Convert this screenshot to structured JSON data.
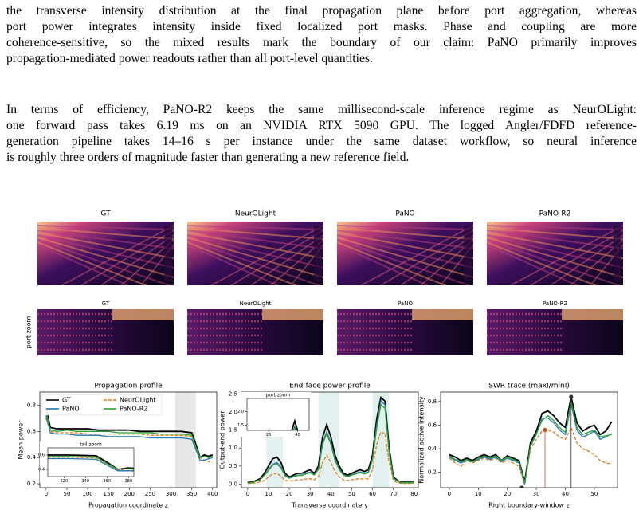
{
  "paragraphs": [
    {
      "lines": [
        "the transverse intensity distribution at the final propagation plane before port aggregation, whereas",
        "port power integrates intensity inside fixed localized port masks. Phase and coupling are more",
        "coherence-sensitive, so the mixed results mark the boundary of our claim: PaNO primarily improves",
        "propagation-mediated power readouts rather than all port-level quantities."
      ]
    },
    {
      "lines": [
        "In terms of efficiency, PaNO-R2 keeps the same millisecond-scale inference regime as NeurOLight:",
        "one forward pass takes 6.19 ms on an NVIDIA RTX 5090 GPU. The logged Angler/FDFD reference-",
        "generation pipeline takes 14–16 s per instance under the same dataset workflow, so neural inference",
        "is roughly three orders of magnitude faster than generating a new reference field."
      ]
    }
  ],
  "figure": {
    "rows": [
      {
        "panels": [
          "GT",
          "NeurOLight",
          "PaNO",
          "PaNO-R2"
        ]
      },
      {
        "label": "port zoom",
        "panels": [
          "GT",
          "NeurOLight",
          "PaNO",
          "PaNO-R2"
        ]
      }
    ],
    "plots": [
      {
        "type": "line",
        "title": "Propagation profile",
        "xlabel": "Propagation coordinate z",
        "ylabel": "Mean power",
        "xlim": [
          -15,
          410
        ],
        "ylim": [
          0.17,
          0.9
        ],
        "xticks": [
          0,
          50,
          100,
          150,
          200,
          250,
          300,
          350,
          400
        ],
        "yticks": [
          0.2,
          0.4,
          0.6,
          0.8
        ],
        "spans": [
          [
            310,
            360
          ]
        ],
        "legend": "upper left",
        "x": [
          0,
          10,
          25,
          50,
          75,
          100,
          125,
          150,
          175,
          200,
          225,
          250,
          275,
          300,
          325,
          350,
          360,
          370,
          380,
          390,
          400
        ],
        "series": [
          {
            "name": "GT",
            "color": "#000000",
            "style": "solid",
            "values": [
              0.78,
              0.63,
              0.62,
              0.62,
              0.62,
              0.62,
              0.61,
              0.61,
              0.61,
              0.61,
              0.6,
              0.6,
              0.6,
              0.6,
              0.6,
              0.59,
              0.5,
              0.4,
              0.42,
              0.41,
              0.42
            ]
          },
          {
            "name": "NeurOLight",
            "color": "#e07b1a",
            "style": "dashed",
            "values": [
              0.7,
              0.6,
              0.59,
              0.59,
              0.59,
              0.58,
              0.58,
              0.58,
              0.58,
              0.58,
              0.58,
              0.57,
              0.57,
              0.57,
              0.57,
              0.56,
              0.48,
              0.4,
              0.38,
              0.37,
              0.36
            ]
          },
          {
            "name": "PaNO",
            "color": "#1f77b4",
            "style": "solid",
            "values": [
              0.72,
              0.59,
              0.58,
              0.58,
              0.57,
              0.57,
              0.57,
              0.56,
              0.56,
              0.56,
              0.56,
              0.55,
              0.55,
              0.55,
              0.55,
              0.54,
              0.46,
              0.38,
              0.38,
              0.39,
              0.4
            ]
          },
          {
            "name": "PaNO-R2",
            "color": "#2ca02c",
            "style": "solid",
            "values": [
              0.75,
              0.61,
              0.6,
              0.61,
              0.6,
              0.6,
              0.6,
              0.6,
              0.59,
              0.59,
              0.59,
              0.59,
              0.58,
              0.58,
              0.58,
              0.57,
              0.48,
              0.4,
              0.41,
              0.4,
              0.41
            ]
          }
        ],
        "inset": {
          "title": "tail zoom",
          "xlim": [
            305,
            385
          ],
          "ylim": [
            0.3,
            0.7
          ],
          "xticks": [
            320,
            340,
            360,
            380
          ],
          "yticks": [
            0.4,
            0.6
          ]
        }
      },
      {
        "type": "line",
        "title": "End-face power profile",
        "xlabel": "Transverse coordinate y",
        "ylabel": "Output-end power",
        "xlim": [
          -3,
          82
        ],
        "ylim": [
          -0.1,
          2.55
        ],
        "xticks": [
          0,
          10,
          20,
          30,
          40,
          50,
          60,
          70,
          80
        ],
        "yticks": [
          {
            "value": 0,
            "label": "0.0"
          },
          0.5,
          {
            "value": 1,
            "label": "1.0"
          },
          1.5,
          {
            "value": 2,
            "label": "2.0"
          },
          2.5
        ],
        "spans": [
          [
            9,
            17
          ],
          [
            34,
            44
          ],
          [
            60,
            68
          ]
        ],
        "x": [
          0,
          2,
          4,
          6,
          8,
          10,
          12,
          14,
          16,
          18,
          20,
          22,
          24,
          26,
          28,
          30,
          32,
          34,
          36,
          38,
          40,
          42,
          44,
          46,
          48,
          50,
          52,
          54,
          56,
          58,
          60,
          62,
          64,
          66,
          68,
          70,
          72,
          74,
          76,
          78,
          80
        ],
        "series": [
          {
            "name": "GT",
            "color": "#000000",
            "style": "solid",
            "values": [
              0.05,
              0.05,
              0.1,
              0.15,
              0.3,
              0.5,
              0.7,
              0.75,
              0.6,
              0.3,
              0.2,
              0.25,
              0.3,
              0.3,
              0.35,
              0.4,
              0.3,
              0.5,
              1.3,
              1.65,
              1.3,
              0.8,
              0.5,
              0.3,
              0.25,
              0.3,
              0.35,
              0.4,
              0.35,
              0.4,
              0.8,
              1.8,
              2.4,
              2.3,
              1.0,
              0.2,
              0.1,
              0.05,
              0.05,
              0.05,
              0.05
            ]
          },
          {
            "name": "NeurOLight",
            "color": "#e07b1a",
            "style": "dashed",
            "values": [
              0.02,
              0.02,
              0.04,
              0.06,
              0.1,
              0.2,
              0.28,
              0.3,
              0.22,
              0.1,
              0.08,
              0.1,
              0.12,
              0.12,
              0.14,
              0.15,
              0.12,
              0.2,
              0.6,
              0.8,
              0.6,
              0.35,
              0.2,
              0.12,
              0.1,
              0.12,
              0.14,
              0.15,
              0.14,
              0.15,
              0.4,
              1.1,
              1.45,
              1.4,
              0.6,
              0.1,
              0.04,
              0.02,
              0.02,
              0.02,
              0.02
            ]
          },
          {
            "name": "PaNO",
            "color": "#1f77b4",
            "style": "solid",
            "values": [
              0.04,
              0.04,
              0.08,
              0.12,
              0.25,
              0.4,
              0.55,
              0.6,
              0.48,
              0.25,
              0.17,
              0.21,
              0.25,
              0.25,
              0.3,
              0.34,
              0.26,
              0.42,
              1.15,
              1.45,
              1.15,
              0.7,
              0.42,
              0.26,
              0.22,
              0.26,
              0.3,
              0.34,
              0.3,
              0.34,
              0.7,
              1.65,
              2.3,
              2.2,
              0.9,
              0.17,
              0.08,
              0.04,
              0.04,
              0.04,
              0.04
            ]
          },
          {
            "name": "PaNO-R2",
            "color": "#2ca02c",
            "style": "solid",
            "values": [
              0.04,
              0.04,
              0.08,
              0.12,
              0.24,
              0.38,
              0.52,
              0.56,
              0.45,
              0.23,
              0.16,
              0.2,
              0.24,
              0.24,
              0.28,
              0.32,
              0.25,
              0.4,
              1.1,
              1.4,
              1.1,
              0.66,
              0.4,
              0.25,
              0.21,
              0.25,
              0.28,
              0.32,
              0.28,
              0.32,
              0.66,
              1.55,
              2.2,
              2.1,
              0.85,
              0.16,
              0.08,
              0.04,
              0.04,
              0.04,
              0.04
            ]
          }
        ],
        "inset": {
          "title": "port zoom",
          "xlim": [
            5,
            48
          ],
          "ylim": [
            1.3,
            2.5
          ],
          "xticks": [
            20,
            40
          ],
          "yticks": [
            1.5,
            {
              "value": 2,
              "label": "2.0"
            }
          ]
        }
      },
      {
        "type": "line",
        "title": "SWR trace (maxI/minI)",
        "xlabel": "Right boundary-window z",
        "ylabel": "Normalized active intensity",
        "xlim": [
          -3,
          58
        ],
        "ylim": [
          0.07,
          0.88
        ],
        "xticks": [
          0,
          10,
          20,
          30,
          40,
          50
        ],
        "yticks": [
          0.2,
          0.4,
          0.6,
          0.8
        ],
        "x": [
          0,
          2,
          4,
          6,
          8,
          10,
          12,
          14,
          16,
          18,
          20,
          22,
          24,
          26,
          28,
          30,
          32,
          34,
          36,
          38,
          40,
          42,
          44,
          46,
          48,
          50,
          52,
          54,
          56
        ],
        "series": [
          {
            "name": "GT",
            "color": "#000000",
            "style": "solid",
            "values": [
              0.35,
              0.33,
              0.3,
              0.32,
              0.3,
              0.33,
              0.35,
              0.33,
              0.35,
              0.3,
              0.34,
              0.32,
              0.3,
              0.12,
              0.45,
              0.55,
              0.7,
              0.72,
              0.68,
              0.62,
              0.58,
              0.84,
              0.62,
              0.55,
              0.58,
              0.6,
              0.52,
              0.55,
              0.63
            ]
          },
          {
            "name": "NeurOLight",
            "color": "#e07b1a",
            "style": "dashed",
            "values": [
              0.32,
              0.28,
              0.25,
              0.3,
              0.28,
              0.3,
              0.32,
              0.3,
              0.32,
              0.28,
              0.3,
              0.28,
              0.25,
              0.1,
              0.4,
              0.48,
              0.55,
              0.56,
              0.54,
              0.5,
              0.48,
              0.58,
              0.45,
              0.4,
              0.38,
              0.35,
              0.3,
              0.28,
              0.27
            ]
          },
          {
            "name": "PaNO",
            "color": "#1f77b4",
            "style": "solid",
            "values": [
              0.33,
              0.3,
              0.28,
              0.3,
              0.29,
              0.31,
              0.33,
              0.31,
              0.33,
              0.29,
              0.32,
              0.3,
              0.28,
              0.1,
              0.42,
              0.52,
              0.66,
              0.66,
              0.62,
              0.56,
              0.52,
              0.78,
              0.56,
              0.5,
              0.52,
              0.55,
              0.48,
              0.5,
              0.53
            ]
          },
          {
            "name": "PaNO-R2",
            "color": "#2ca02c",
            "style": "solid",
            "values": [
              0.34,
              0.31,
              0.29,
              0.31,
              0.29,
              0.32,
              0.34,
              0.32,
              0.34,
              0.3,
              0.33,
              0.31,
              0.29,
              0.11,
              0.43,
              0.53,
              0.64,
              0.68,
              0.64,
              0.58,
              0.54,
              0.8,
              0.58,
              0.52,
              0.54,
              0.56,
              0.5,
              0.51,
              0.52
            ]
          }
        ],
        "markers": [
          {
            "x": 25,
            "y": 0.07,
            "color": "#333333"
          },
          {
            "x": 42,
            "y": 0.84,
            "color": "#333333"
          },
          {
            "x": 33,
            "y": 0.56,
            "color": "#c8501a"
          }
        ]
      }
    ]
  }
}
